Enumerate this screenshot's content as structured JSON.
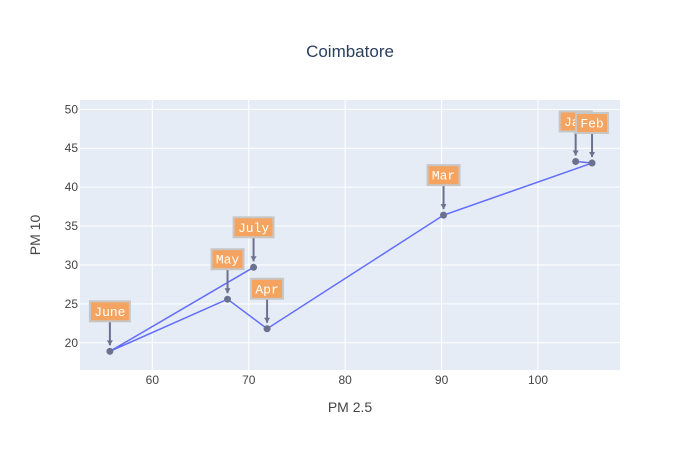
{
  "chart_data": {
    "type": "line",
    "title": "Coimbatore",
    "xlabel": "PM 2.5",
    "ylabel": "PM 10",
    "xlim": [
      52.5,
      108.5
    ],
    "ylim": [
      16.5,
      51.2
    ],
    "xticks": [
      60,
      70,
      80,
      90,
      100
    ],
    "yticks": [
      20,
      25,
      30,
      35,
      40,
      45,
      50
    ],
    "grid": true,
    "series": [
      {
        "mode": "lines+markers",
        "points": [
          {
            "month": "Jan",
            "x": 103.9,
            "y": 43.3
          },
          {
            "month": "Feb",
            "x": 105.6,
            "y": 43.1
          },
          {
            "month": "Mar",
            "x": 90.2,
            "y": 36.4
          },
          {
            "month": "Apr",
            "x": 71.9,
            "y": 21.8
          },
          {
            "month": "May",
            "x": 67.8,
            "y": 25.6
          },
          {
            "month": "June",
            "x": 55.6,
            "y": 18.9
          },
          {
            "month": "July",
            "x": 70.5,
            "y": 29.7
          }
        ]
      }
    ],
    "colors": {
      "line": "#636efa",
      "marker": "#6b7290",
      "annotation_bg": "#f4a460",
      "annotation_border": "#c7c7c7",
      "plot_bg": "#e5ecf6",
      "grid": "#ffffff"
    }
  }
}
